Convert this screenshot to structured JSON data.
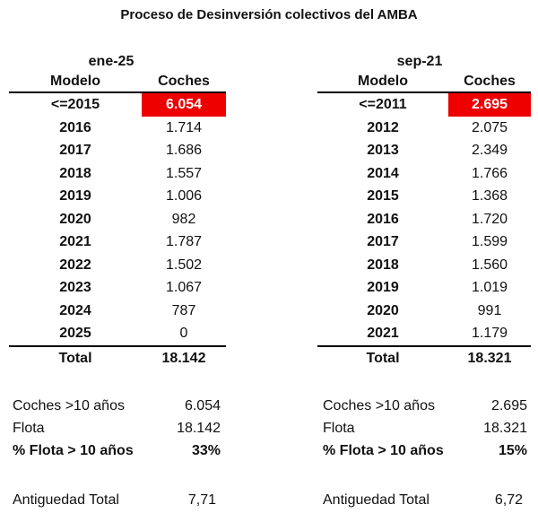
{
  "title": "Proceso de Desinversión colectivos del AMBA",
  "colors": {
    "highlight": "#ee0000"
  },
  "tables": [
    {
      "date": "ene-25",
      "headers": {
        "modelo": "Modelo",
        "coches": "Coches"
      },
      "rows": [
        {
          "modelo": "<=2015",
          "coches": "6.054"
        },
        {
          "modelo": "2016",
          "coches": "1.714"
        },
        {
          "modelo": "2017",
          "coches": "1.686"
        },
        {
          "modelo": "2018",
          "coches": "1.557"
        },
        {
          "modelo": "2019",
          "coches": "1.006"
        },
        {
          "modelo": "2020",
          "coches": "982"
        },
        {
          "modelo": "2021",
          "coches": "1.787"
        },
        {
          "modelo": "2022",
          "coches": "1.502"
        },
        {
          "modelo": "2023",
          "coches": "1.067"
        },
        {
          "modelo": "2024",
          "coches": "787"
        },
        {
          "modelo": "2025",
          "coches": "0"
        }
      ],
      "total": {
        "label": "Total",
        "value": "18.142"
      },
      "stats": {
        "coches_label": "Coches >10 años",
        "coches_value": "6.054",
        "flota_label": "Flota",
        "flota_value": "18.142",
        "pct_label": "% Flota > 10 años",
        "pct_value": "33%",
        "antiguedad_label": "Antiguedad Total",
        "antiguedad_value": "7,71"
      }
    },
    {
      "date": "sep-21",
      "headers": {
        "modelo": "Modelo",
        "coches": "Coches"
      },
      "rows": [
        {
          "modelo": "<=2011",
          "coches": "2.695"
        },
        {
          "modelo": "2012",
          "coches": "2.075"
        },
        {
          "modelo": "2013",
          "coches": "2.349"
        },
        {
          "modelo": "2014",
          "coches": "1.766"
        },
        {
          "modelo": "2015",
          "coches": "1.368"
        },
        {
          "modelo": "2016",
          "coches": "1.720"
        },
        {
          "modelo": "2017",
          "coches": "1.599"
        },
        {
          "modelo": "2018",
          "coches": "1.560"
        },
        {
          "modelo": "2019",
          "coches": "1.019"
        },
        {
          "modelo": "2020",
          "coches": "991"
        },
        {
          "modelo": "2021",
          "coches": "1.179"
        }
      ],
      "total": {
        "label": "Total",
        "value": "18.321"
      },
      "stats": {
        "coches_label": "Coches >10 años",
        "coches_value": "2.695",
        "flota_label": "Flota",
        "flota_value": "18.321",
        "pct_label": "% Flota > 10 años",
        "pct_value": "15%",
        "antiguedad_label": "Antiguedad Total",
        "antiguedad_value": "6,72"
      }
    }
  ]
}
